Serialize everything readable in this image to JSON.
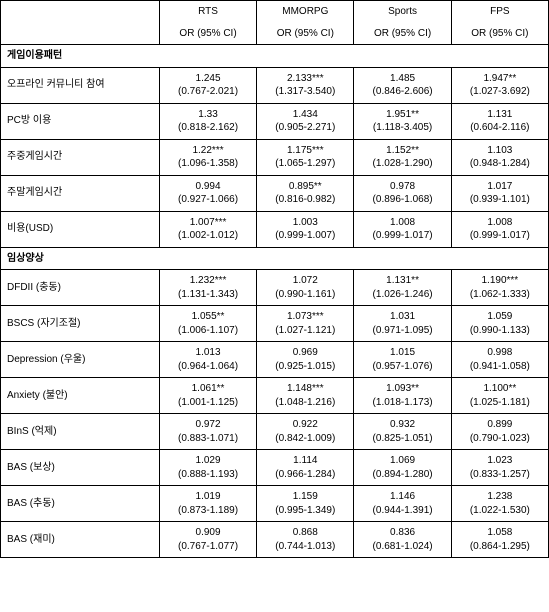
{
  "columns": [
    "RTS",
    "MMORPG",
    "Sports",
    "FPS"
  ],
  "subheader": "OR (95% CI)",
  "sections": [
    {
      "title": "게임이용패턴",
      "rows": [
        {
          "label": "오프라인 커뮤니티 참여",
          "values": [
            "1.245",
            "2.133***",
            "1.485",
            "1.947**"
          ],
          "cis": [
            "(0.767-2.021)",
            "(1.317-3.540)",
            "(0.846-2.606)",
            "(1.027-3.692)"
          ]
        },
        {
          "label": "PC방 이용",
          "values": [
            "1.33",
            "1.434",
            "1.951**",
            "1.131"
          ],
          "cis": [
            "(0.818-2.162)",
            "(0.905-2.271)",
            "(1.118-3.405)",
            "(0.604-2.116)"
          ]
        },
        {
          "label": "주중게임시간",
          "values": [
            "1.22***",
            "1.175***",
            "1.152**",
            "1.103"
          ],
          "cis": [
            "(1.096-1.358)",
            "(1.065-1.297)",
            "(1.028-1.290)",
            "(0.948-1.284)"
          ]
        },
        {
          "label": "주말게임시간",
          "values": [
            "0.994",
            "0.895**",
            "0.978",
            "1.017"
          ],
          "cis": [
            "(0.927-1.066)",
            "(0.816-0.982)",
            "(0.896-1.068)",
            "(0.939-1.101)"
          ]
        },
        {
          "label": "비용(USD)",
          "values": [
            "1.007***",
            "1.003",
            "1.008",
            "1.008"
          ],
          "cis": [
            "(1.002-1.012)",
            "(0.999-1.007)",
            "(0.999-1.017)",
            "(0.999-1.017)"
          ]
        }
      ]
    },
    {
      "title": "임상양상",
      "rows": [
        {
          "label": "DFDII (충동)",
          "values": [
            "1.232***",
            "1.072",
            "1.131**",
            "1.190***"
          ],
          "cis": [
            "(1.131-1.343)",
            "(0.990-1.161)",
            "(1.026-1.246)",
            "(1.062-1.333)"
          ]
        },
        {
          "label": "BSCS (자기조절)",
          "values": [
            "1.055**",
            "1.073***",
            "1.031",
            "1.059"
          ],
          "cis": [
            "(1.006-1.107)",
            "(1.027-1.121)",
            "(0.971-1.095)",
            "(0.990-1.133)"
          ]
        },
        {
          "label": "Depression (우울)",
          "values": [
            "1.013",
            "0.969",
            "1.015",
            "0.998"
          ],
          "cis": [
            "(0.964-1.064)",
            "(0.925-1.015)",
            "(0.957-1.076)",
            "(0.941-1.058)"
          ]
        },
        {
          "label": "Anxiety (불안)",
          "values": [
            "1.061**",
            "1.148***",
            "1.093**",
            "1.100**"
          ],
          "cis": [
            "(1.001-1.125)",
            "(1.048-1.216)",
            "(1.018-1.173)",
            "(1.025-1.181)"
          ]
        },
        {
          "label": "BInS (억제)",
          "values": [
            "0.972",
            "0.922",
            "0.932",
            "0.899"
          ],
          "cis": [
            "(0.883-1.071)",
            "(0.842-1.009)",
            "(0.825-1.051)",
            "(0.790-1.023)"
          ]
        },
        {
          "label": "BAS (보상)",
          "values": [
            "1.029",
            "1.114",
            "1.069",
            "1.023"
          ],
          "cis": [
            "(0.888-1.193)",
            "(0.966-1.284)",
            "(0.894-1.280)",
            "(0.833-1.257)"
          ]
        },
        {
          "label": "BAS (추동)",
          "values": [
            "1.019",
            "1.159",
            "1.146",
            "1.238"
          ],
          "cis": [
            "(0.873-1.189)",
            "(0.995-1.349)",
            "(0.944-1.391)",
            "(1.022-1.530)"
          ]
        },
        {
          "label": "BAS (재미)",
          "values": [
            "0.909",
            "0.868",
            "0.836",
            "1.058"
          ],
          "cis": [
            "(0.767-1.077)",
            "(0.744-1.013)",
            "(0.681-1.024)",
            "(0.864-1.295)"
          ]
        }
      ]
    }
  ]
}
